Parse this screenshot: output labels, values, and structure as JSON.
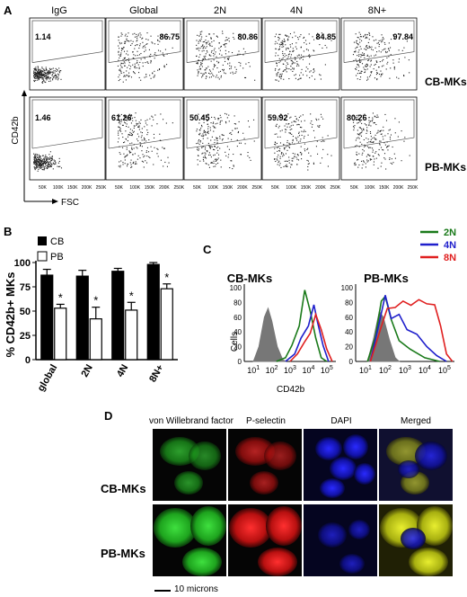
{
  "panelA": {
    "label": "A",
    "columns": [
      "IgG",
      "Global",
      "2N",
      "4N",
      "8N+"
    ],
    "rows": [
      {
        "name": "CB-MKs",
        "values": [
          "1.14",
          "86.75",
          "80.86",
          "84.85",
          "97.84"
        ]
      },
      {
        "name": "PB-MKs",
        "values": [
          "1.46",
          "61.26",
          "50.45",
          "59.92",
          "80.26"
        ]
      }
    ],
    "y_axis": "CD42b",
    "x_axis": "FSC",
    "ticks": [
      "50K",
      "100K",
      "150K",
      "200K",
      "250K"
    ]
  },
  "chart_data": [
    {
      "type": "bar",
      "label": "B",
      "ylabel": "% CD42b+ MKs",
      "categories": [
        "global",
        "2N",
        "4N",
        "8N+"
      ],
      "ylim": [
        0,
        100
      ],
      "yticks": [
        "0",
        "25",
        "50",
        "75",
        "100"
      ],
      "series": [
        {
          "name": "CB",
          "values": [
            87,
            86,
            91,
            98
          ],
          "errors": [
            6,
            6,
            3,
            2
          ],
          "fill": "#000000"
        },
        {
          "name": "PB",
          "values": [
            53,
            42,
            51,
            73
          ],
          "errors": [
            4,
            12,
            8,
            5
          ],
          "fill": "#ffffff"
        }
      ],
      "annotations": [
        "*",
        "*",
        "*",
        "*"
      ]
    },
    {
      "type": "line",
      "label": "C",
      "ylabel": "Cells",
      "xlabel": "CD42b",
      "panels": [
        {
          "title": "CB-MKs",
          "yticks": [
            "0",
            "20",
            "40",
            "60",
            "80",
            "100"
          ]
        },
        {
          "title": "PB-MKs",
          "yticks": [
            "0",
            "20",
            "40",
            "60",
            "80",
            "100"
          ]
        }
      ],
      "xticks_base": "10",
      "xticks_exp": [
        "1",
        "2",
        "3",
        "4",
        "5"
      ],
      "legend": [
        {
          "name": "2N",
          "color": "#1a7a1a"
        },
        {
          "name": "4N",
          "color": "#1f1fcc"
        },
        {
          "name": "8N",
          "color": "#e02020"
        }
      ]
    }
  ],
  "panelD": {
    "label": "D",
    "columns": [
      "von Willebrand factor",
      "P-selectin",
      "DAPI",
      "Merged"
    ],
    "rows": [
      "CB-MKs",
      "PB-MKs"
    ],
    "scale": "10 microns"
  }
}
